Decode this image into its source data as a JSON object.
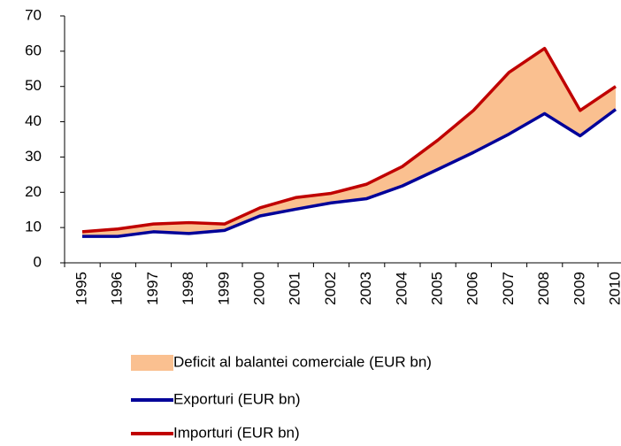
{
  "chart_data": {
    "type": "line",
    "categories": [
      "1995",
      "1996",
      "1997",
      "1998",
      "1999",
      "2000",
      "2001",
      "2002",
      "2003",
      "2004",
      "2005",
      "2006",
      "2007",
      "2008",
      "2009",
      "2010"
    ],
    "series": [
      {
        "name": "Deficit al balantei comerciale (EUR bn)",
        "color": "#fac090",
        "type": "band"
      },
      {
        "name": "Exporturi (EUR bn)",
        "color": "#000099",
        "values": [
          7.5,
          7.5,
          8.8,
          8.3,
          9.2,
          13.3,
          15.2,
          17,
          18.2,
          21.8,
          26.5,
          31.3,
          36.5,
          42.3,
          36,
          43.5
        ]
      },
      {
        "name": "Importuri (EUR bn)",
        "color": "#c00000",
        "values": [
          8.8,
          9.6,
          11,
          11.4,
          11,
          15.6,
          18.5,
          19.7,
          22.3,
          27.3,
          34.8,
          43.2,
          54,
          60.8,
          43.2,
          50
        ]
      }
    ],
    "ylim": [
      0,
      70
    ],
    "yticks": [
      0,
      10,
      20,
      30,
      40,
      50,
      60,
      70
    ],
    "grid": false
  }
}
